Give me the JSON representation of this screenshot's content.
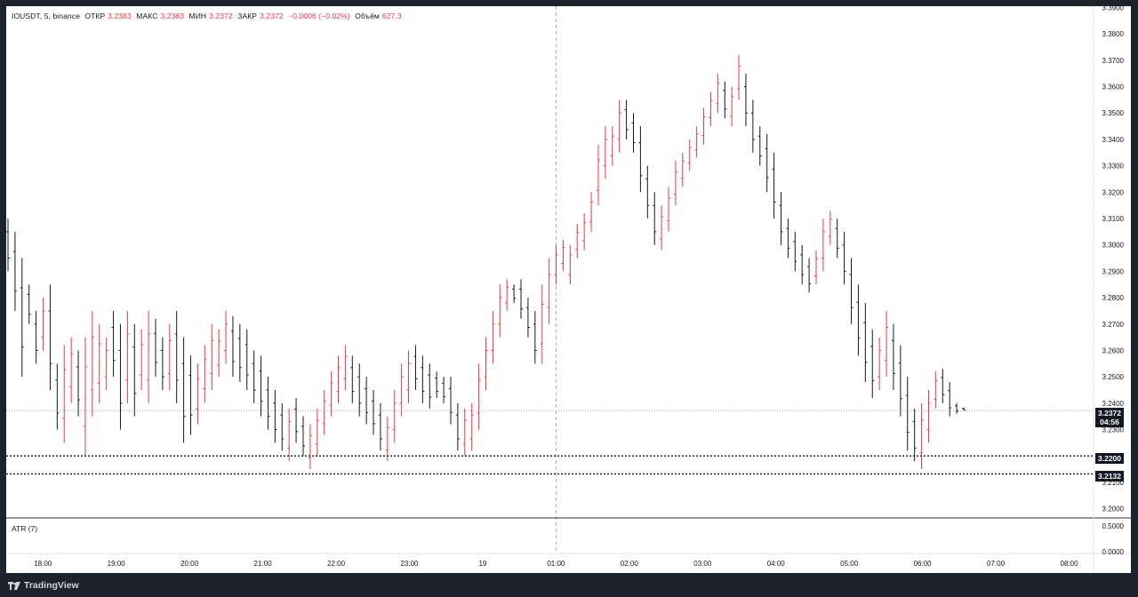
{
  "legend": {
    "symbol": "IOUSDT, 5, binance",
    "open_label": "ОТКР",
    "open": "3.2383",
    "high_label": "МАКС",
    "high": "3.2383",
    "low_label": "МИН",
    "low": "3.2372",
    "close_label": "ЗАКР",
    "close": "3.2372",
    "change": "−0.0006 (−0.02%)",
    "volume_label": "Объём",
    "volume": "627.3"
  },
  "atr_label": "ATR (7)",
  "brand": "TradingView",
  "price_tags": {
    "current_price": "3.2372",
    "countdown": "04:56",
    "level_1": "3.2200",
    "level_2": "3.2132"
  },
  "colors": {
    "up": "#f23645",
    "down": "#131722",
    "background": "#ffffff",
    "frame": "#1e222d"
  },
  "chart_data": {
    "type": "ohlc",
    "price_axis": {
      "ticks": [
        "3.2000",
        "3.2100",
        "3.2200",
        "3.2300",
        "3.2400",
        "3.2500",
        "3.2600",
        "3.2700",
        "3.2800",
        "3.2900",
        "3.3000",
        "3.3100",
        "3.3200",
        "3.3300",
        "3.3400",
        "3.3500",
        "3.3600",
        "3.3700",
        "3.3800",
        "3.3900"
      ],
      "ylim": [
        3.1965,
        3.3905
      ]
    },
    "atr_axis": {
      "ticks": [
        "0.5000",
        "0.0000"
      ]
    },
    "time_axis": {
      "labels": [
        "18:00",
        "19:00",
        "20:00",
        "21:00",
        "22:00",
        "23:00",
        "19",
        "01:00",
        "02:00",
        "03:00",
        "04:00",
        "05:00",
        "06:00",
        "07:00",
        "08:00"
      ],
      "start": "17:30",
      "end": "08:20",
      "bar_minutes": 5
    },
    "horizontal_levels": [
      3.22,
      3.2132
    ],
    "current_price_line": 3.2372,
    "crosshair_time": "01:00",
    "series": [
      {
        "hl": [
          3.29,
          3.31
        ]
      },
      {
        "hl": [
          3.275,
          3.305
        ]
      },
      {
        "hl": [
          3.25,
          3.295
        ]
      },
      {
        "hl": [
          3.27,
          3.285
        ]
      },
      {
        "hl": [
          3.255,
          3.275
        ]
      },
      {
        "hl": [
          3.26,
          3.28
        ]
      },
      {
        "hl": [
          3.245,
          3.285
        ]
      },
      {
        "hl": [
          3.23,
          3.255
        ]
      },
      {
        "hl": [
          3.225,
          3.262
        ]
      },
      {
        "hl": [
          3.24,
          3.265
        ]
      },
      {
        "hl": [
          3.235,
          3.26
        ]
      },
      {
        "hl": [
          3.22,
          3.265
        ]
      },
      {
        "hl": [
          3.235,
          3.275
        ]
      },
      {
        "hl": [
          3.24,
          3.27
        ]
      },
      {
        "hl": [
          3.245,
          3.265
        ]
      },
      {
        "hl": [
          3.25,
          3.275
        ]
      },
      {
        "hl": [
          3.23,
          3.27
        ]
      },
      {
        "hl": [
          3.24,
          3.275
        ]
      },
      {
        "hl": [
          3.235,
          3.27
        ]
      },
      {
        "hl": [
          3.245,
          3.268
        ]
      },
      {
        "hl": [
          3.24,
          3.275
        ]
      },
      {
        "hl": [
          3.25,
          3.272
        ]
      },
      {
        "hl": [
          3.245,
          3.265
        ]
      },
      {
        "hl": [
          3.245,
          3.27
        ]
      },
      {
        "hl": [
          3.24,
          3.275
        ]
      },
      {
        "hl": [
          3.225,
          3.265
        ]
      },
      {
        "hl": [
          3.228,
          3.258
        ]
      },
      {
        "hl": [
          3.232,
          3.255
        ]
      },
      {
        "hl": [
          3.24,
          3.262
        ]
      },
      {
        "hl": [
          3.245,
          3.27
        ]
      },
      {
        "hl": [
          3.25,
          3.268
        ]
      },
      {
        "hl": [
          3.255,
          3.275
        ]
      },
      {
        "hl": [
          3.25,
          3.273
        ]
      },
      {
        "hl": [
          3.248,
          3.27
        ]
      },
      {
        "hl": [
          3.245,
          3.268
        ]
      },
      {
        "hl": [
          3.24,
          3.26
        ]
      },
      {
        "hl": [
          3.235,
          3.258
        ]
      },
      {
        "hl": [
          3.23,
          3.25
        ]
      },
      {
        "hl": [
          3.225,
          3.245
        ]
      },
      {
        "hl": [
          3.222,
          3.24
        ]
      },
      {
        "hl": [
          3.218,
          3.238
        ]
      },
      {
        "hl": [
          3.225,
          3.242
        ]
      },
      {
        "hl": [
          3.22,
          3.235
        ]
      },
      {
        "hl": [
          3.215,
          3.232
        ]
      },
      {
        "hl": [
          3.22,
          3.238
        ]
      },
      {
        "hl": [
          3.228,
          3.245
        ]
      },
      {
        "hl": [
          3.235,
          3.252
        ]
      },
      {
        "hl": [
          3.24,
          3.258
        ]
      },
      {
        "hl": [
          3.245,
          3.262
        ]
      },
      {
        "hl": [
          3.24,
          3.258
        ]
      },
      {
        "hl": [
          3.235,
          3.255
        ]
      },
      {
        "hl": [
          3.232,
          3.25
        ]
      },
      {
        "hl": [
          3.228,
          3.245
        ]
      },
      {
        "hl": [
          3.222,
          3.24
        ]
      },
      {
        "hl": [
          3.218,
          3.235
        ]
      },
      {
        "hl": [
          3.225,
          3.245
        ]
      },
      {
        "hl": [
          3.235,
          3.255
        ]
      },
      {
        "hl": [
          3.24,
          3.26
        ]
      },
      {
        "hl": [
          3.245,
          3.262
        ]
      },
      {
        "hl": [
          3.24,
          3.258
        ]
      },
      {
        "hl": [
          3.238,
          3.255
        ]
      },
      {
        "hl": [
          3.242,
          3.252
        ]
      },
      {
        "hl": [
          3.24,
          3.25
        ]
      },
      {
        "hl": [
          3.232,
          3.25
        ]
      },
      {
        "hl": [
          3.222,
          3.24
        ]
      },
      {
        "hl": [
          3.22,
          3.238
        ]
      },
      {
        "hl": [
          3.222,
          3.24
        ]
      },
      {
        "hl": [
          3.23,
          3.255
        ]
      },
      {
        "hl": [
          3.245,
          3.265
        ]
      },
      {
        "hl": [
          3.255,
          3.275
        ]
      },
      {
        "hl": [
          3.265,
          3.285
        ]
      },
      {
        "hl": [
          3.275,
          3.287
        ]
      },
      {
        "hl": [
          3.278,
          3.285
        ]
      },
      {
        "hl": [
          3.272,
          3.287
        ]
      },
      {
        "hl": [
          3.265,
          3.28
        ]
      },
      {
        "hl": [
          3.255,
          3.275
        ]
      },
      {
        "hl": [
          3.255,
          3.285
        ]
      },
      {
        "hl": [
          3.27,
          3.295
        ]
      },
      {
        "hl": [
          3.285,
          3.3
        ]
      },
      {
        "hl": [
          3.29,
          3.302
        ]
      },
      {
        "hl": [
          3.285,
          3.3
        ]
      },
      {
        "hl": [
          3.295,
          3.308
        ]
      },
      {
        "hl": [
          3.298,
          3.312
        ]
      },
      {
        "hl": [
          3.305,
          3.32
        ]
      },
      {
        "hl": [
          3.315,
          3.338
        ]
      },
      {
        "hl": [
          3.325,
          3.345
        ]
      },
      {
        "hl": [
          3.33,
          3.345
        ]
      },
      {
        "hl": [
          3.335,
          3.355
        ]
      },
      {
        "hl": [
          3.34,
          3.355
        ]
      },
      {
        "hl": [
          3.335,
          3.35
        ]
      },
      {
        "hl": [
          3.32,
          3.345
        ]
      },
      {
        "hl": [
          3.31,
          3.33
        ]
      },
      {
        "hl": [
          3.3,
          3.32
        ]
      },
      {
        "hl": [
          3.298,
          3.315
        ]
      },
      {
        "hl": [
          3.305,
          3.322
        ]
      },
      {
        "hl": [
          3.315,
          3.332
        ]
      },
      {
        "hl": [
          3.322,
          3.335
        ]
      },
      {
        "hl": [
          3.328,
          3.34
        ]
      },
      {
        "hl": [
          3.333,
          3.345
        ]
      },
      {
        "hl": [
          3.338,
          3.352
        ]
      },
      {
        "hl": [
          3.345,
          3.358
        ]
      },
      {
        "hl": [
          3.35,
          3.365
        ]
      },
      {
        "hl": [
          3.348,
          3.362
        ]
      },
      {
        "hl": [
          3.345,
          3.36
        ]
      },
      {
        "hl": [
          3.355,
          3.372
        ]
      },
      {
        "hl": [
          3.345,
          3.365
        ]
      },
      {
        "hl": [
          3.335,
          3.355
        ]
      },
      {
        "hl": [
          3.33,
          3.345
        ]
      },
      {
        "hl": [
          3.32,
          3.342
        ]
      },
      {
        "hl": [
          3.31,
          3.335
        ]
      },
      {
        "hl": [
          3.3,
          3.32
        ]
      },
      {
        "hl": [
          3.295,
          3.31
        ]
      },
      {
        "hl": [
          3.29,
          3.305
        ]
      },
      {
        "hl": [
          3.285,
          3.3
        ]
      },
      {
        "hl": [
          3.282,
          3.295
        ]
      },
      {
        "hl": [
          3.285,
          3.298
        ]
      },
      {
        "hl": [
          3.29,
          3.31
        ]
      },
      {
        "hl": [
          3.3,
          3.313
        ]
      },
      {
        "hl": [
          3.295,
          3.31
        ]
      },
      {
        "hl": [
          3.285,
          3.305
        ]
      },
      {
        "hl": [
          3.27,
          3.295
        ]
      },
      {
        "hl": [
          3.258,
          3.285
        ]
      },
      {
        "hl": [
          3.248,
          3.278
        ]
      },
      {
        "hl": [
          3.242,
          3.268
        ]
      },
      {
        "hl": [
          3.245,
          3.265
        ]
      },
      {
        "hl": [
          3.25,
          3.275
        ]
      },
      {
        "hl": [
          3.245,
          3.27
        ]
      },
      {
        "hl": [
          3.235,
          3.262
        ]
      },
      {
        "hl": [
          3.222,
          3.25
        ]
      },
      {
        "hl": [
          3.218,
          3.238
        ]
      },
      {
        "hl": [
          3.215,
          3.24
        ]
      },
      {
        "hl": [
          3.225,
          3.245
        ]
      },
      {
        "hl": [
          3.238,
          3.252
        ]
      },
      {
        "hl": [
          3.24,
          3.253
        ]
      },
      {
        "hl": [
          3.235,
          3.248
        ]
      },
      {
        "hl": [
          3.236,
          3.24
        ]
      },
      {
        "hl": [
          3.2372,
          3.2383
        ]
      }
    ]
  }
}
